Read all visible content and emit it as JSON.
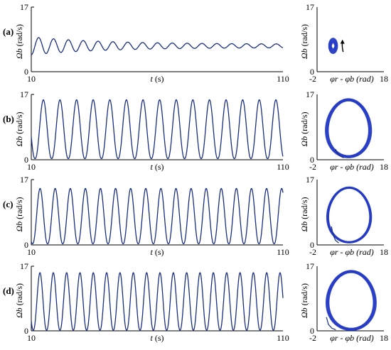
{
  "figure": {
    "panel_labels": [
      "(a)",
      "(b)",
      "(c)",
      "(d)"
    ],
    "time_axis": {
      "label_var": "t",
      "label_unit": " (s)",
      "ticks": [
        "10",
        "110"
      ],
      "range": [
        10,
        110
      ]
    },
    "phase_axis": {
      "label": "φr - φb (rad)",
      "ticks": [
        "-2",
        "18"
      ],
      "range": [
        -2,
        18
      ]
    },
    "y_axis": {
      "label_var": "Ωb",
      "label_unit": " (rad/s)",
      "ticks": [
        "0",
        "17"
      ],
      "range": [
        0,
        17
      ]
    },
    "colors": {
      "line": "#1a2f80",
      "orbit": "#2339c4",
      "axis": "#000000"
    }
  },
  "chart_data": [
    {
      "type": "line",
      "panel": "(a)",
      "xlabel": "t (s)",
      "ylabel": "Ωb (rad/s)",
      "xlim": [
        10,
        110
      ],
      "ylim": [
        0,
        17
      ],
      "series": [
        {
          "x": [
            10,
            13,
            16,
            19,
            22,
            25,
            28,
            31,
            34,
            37,
            40,
            43,
            46,
            49,
            52,
            55,
            58,
            61,
            64,
            67,
            70,
            73,
            76,
            79,
            82,
            85,
            88,
            91,
            94,
            97,
            100,
            103,
            106,
            109
          ],
          "values": [
            5.1,
            8.6,
            5.4,
            8.3,
            5.6,
            8.1,
            5.8,
            8.0,
            6.0,
            7.9,
            6.1,
            7.8,
            6.2,
            7.7,
            6.2,
            7.6,
            6.3,
            7.6,
            6.3,
            7.5,
            6.4,
            7.5,
            6.4,
            7.5,
            6.4,
            7.4,
            6.5,
            7.4,
            6.5,
            7.4,
            6.5,
            7.4,
            6.5,
            7.3
          ]
        }
      ],
      "oscillation": {
        "mean": 6.8,
        "period_s": 5.9
      }
    },
    {
      "type": "line",
      "panel": "(b)",
      "xlabel": "t (s)",
      "ylabel": "Ωb (rad/s)",
      "xlim": [
        10,
        110
      ],
      "ylim": [
        0,
        17
      ],
      "series": [
        {
          "x": [
            11.5,
            14.8,
            18.1,
            21.4,
            24.7,
            28.0,
            31.3,
            34.6,
            37.9,
            41.2,
            44.5,
            47.8,
            51.1,
            54.4,
            57.7,
            61.0,
            64.3,
            67.6,
            70.9,
            74.2,
            77.5,
            80.8,
            84.1,
            87.4,
            90.7,
            94.0,
            97.3,
            100.6,
            103.9,
            107.2
          ],
          "values": [
            0.3,
            15.6,
            0.3,
            15.5,
            0.3,
            15.6,
            0.3,
            15.5,
            0.3,
            15.6,
            0.3,
            15.5,
            0.3,
            15.6,
            0.3,
            15.5,
            0.3,
            15.6,
            0.3,
            15.5,
            0.3,
            15.6,
            0.3,
            15.5,
            0.3,
            15.6,
            0.3,
            15.5,
            0.3,
            15.6
          ]
        }
      ],
      "oscillation": {
        "min": 0.3,
        "max": 15.6,
        "period_s": 6.6
      }
    },
    {
      "type": "line",
      "panel": "(c)",
      "xlabel": "t (s)",
      "ylabel": "Ωb (rad/s)",
      "xlim": [
        10,
        110
      ],
      "ylim": [
        0,
        17
      ],
      "series": [
        {
          "x": [
            10.5,
            13.5,
            16.5,
            19.5,
            22.5,
            25.5,
            28.5,
            31.5,
            34.5,
            37.5,
            40.5,
            43.5,
            46.5,
            49.5,
            52.5,
            55.5,
            58.5,
            61.5,
            64.5,
            67.5,
            70.5,
            73.5,
            76.5,
            79.5,
            82.5,
            85.5,
            88.5,
            91.5,
            94.5,
            97.5,
            100.5,
            103.5,
            106.5,
            109.5
          ],
          "values": [
            0.3,
            14.7,
            0.3,
            14.6,
            0.3,
            14.7,
            0.3,
            14.6,
            0.3,
            14.7,
            0.3,
            14.6,
            0.3,
            14.7,
            0.3,
            14.6,
            0.3,
            14.7,
            0.3,
            14.6,
            0.3,
            14.7,
            0.3,
            14.6,
            0.3,
            14.7,
            0.3,
            14.6,
            0.3,
            14.7,
            0.3,
            14.6,
            0.3,
            14.7
          ]
        }
      ],
      "oscillation": {
        "min": 0.3,
        "max": 14.7,
        "period_s": 6.0
      }
    },
    {
      "type": "line",
      "panel": "(d)",
      "xlabel": "t (s)",
      "ylabel": "Ωb (rad/s)",
      "xlim": [
        10,
        110
      ],
      "ylim": [
        0,
        17
      ],
      "series": [
        {
          "x": [
            10.8,
            13.45,
            16.1,
            18.75,
            21.4,
            24.05,
            26.7,
            29.35,
            32.0,
            34.65,
            37.3,
            39.95,
            42.6,
            45.25,
            47.9,
            50.55,
            53.2,
            55.85,
            58.5,
            61.15,
            63.8,
            66.45,
            69.1,
            71.75,
            74.4,
            77.05,
            79.7,
            82.35,
            85.0,
            87.65,
            90.3,
            92.95,
            95.6,
            98.25,
            100.9,
            103.55,
            106.2,
            108.85
          ],
          "values": [
            0.2,
            15.3,
            0.2,
            15.2,
            0.2,
            15.3,
            0.2,
            15.2,
            0.2,
            15.3,
            0.2,
            15.2,
            0.2,
            15.3,
            0.2,
            15.2,
            0.2,
            15.3,
            0.2,
            15.2,
            0.2,
            15.3,
            0.2,
            15.2,
            0.2,
            15.3,
            0.2,
            15.2,
            0.2,
            15.3,
            0.2,
            15.2,
            0.2,
            15.3,
            0.2,
            15.2,
            0.2,
            15.3
          ]
        }
      ],
      "oscillation": {
        "min": 0.2,
        "max": 15.3,
        "period_s": 5.3
      }
    },
    {
      "type": "line",
      "panel": "(a) phase",
      "xlabel": "φr - φb (rad)",
      "ylabel": "Ωb (rad/s)",
      "xlim": [
        -2,
        18
      ],
      "ylim": [
        0,
        17
      ],
      "orbit": {
        "center": [
          2.8,
          6.8
        ],
        "rx": [
          0.4,
          1.3
        ],
        "ry": [
          0.8,
          2.0
        ]
      },
      "annotation": "arrow pointing up near x 5.5, y 7"
    },
    {
      "type": "line",
      "panel": "(b) phase",
      "xlabel": "φr - φb (rad)",
      "ylabel": "Ωb (rad/s)",
      "xlim": [
        -2,
        18
      ],
      "ylim": [
        0,
        17
      ],
      "orbit": {
        "center": [
          7.4,
          8.2
        ],
        "rx": [
          6.0,
          6.9
        ],
        "ry": [
          7.1,
          7.7
        ]
      },
      "transient": {
        "x": [
          3.5,
          4.2,
          5.0,
          6.0
        ],
        "values": [
          2.8,
          1.6,
          0.9,
          0.5
        ]
      }
    },
    {
      "type": "line",
      "panel": "(c) phase",
      "xlabel": "φr - φb (rad)",
      "ylabel": "Ωb (rad/s)",
      "xlim": [
        -2,
        18
      ],
      "ylim": [
        0,
        17
      ],
      "orbit": {
        "center": [
          7.6,
          7.8
        ],
        "rx": [
          6.1,
          6.7
        ],
        "ry": [
          6.9,
          7.3
        ]
      },
      "transient": {
        "x": [
          2.3,
          2.8,
          3.5,
          4.5
        ],
        "values": [
          4.8,
          2.6,
          1.2,
          0.5
        ]
      }
    },
    {
      "type": "line",
      "panel": "(d) phase",
      "xlabel": "φr - φb (rad)",
      "ylabel": "Ωb (rad/s)",
      "xlim": [
        -2,
        18
      ],
      "ylim": [
        0,
        17
      ],
      "orbit": {
        "center": [
          8.2,
          8.0
        ],
        "rx": [
          6.6,
          7.5
        ],
        "ry": [
          7.3,
          7.9
        ]
      },
      "transient": {
        "x": [
          0.8,
          1.4,
          2.4,
          3.6
        ],
        "values": [
          3.6,
          1.7,
          0.7,
          0.3
        ]
      }
    }
  ]
}
